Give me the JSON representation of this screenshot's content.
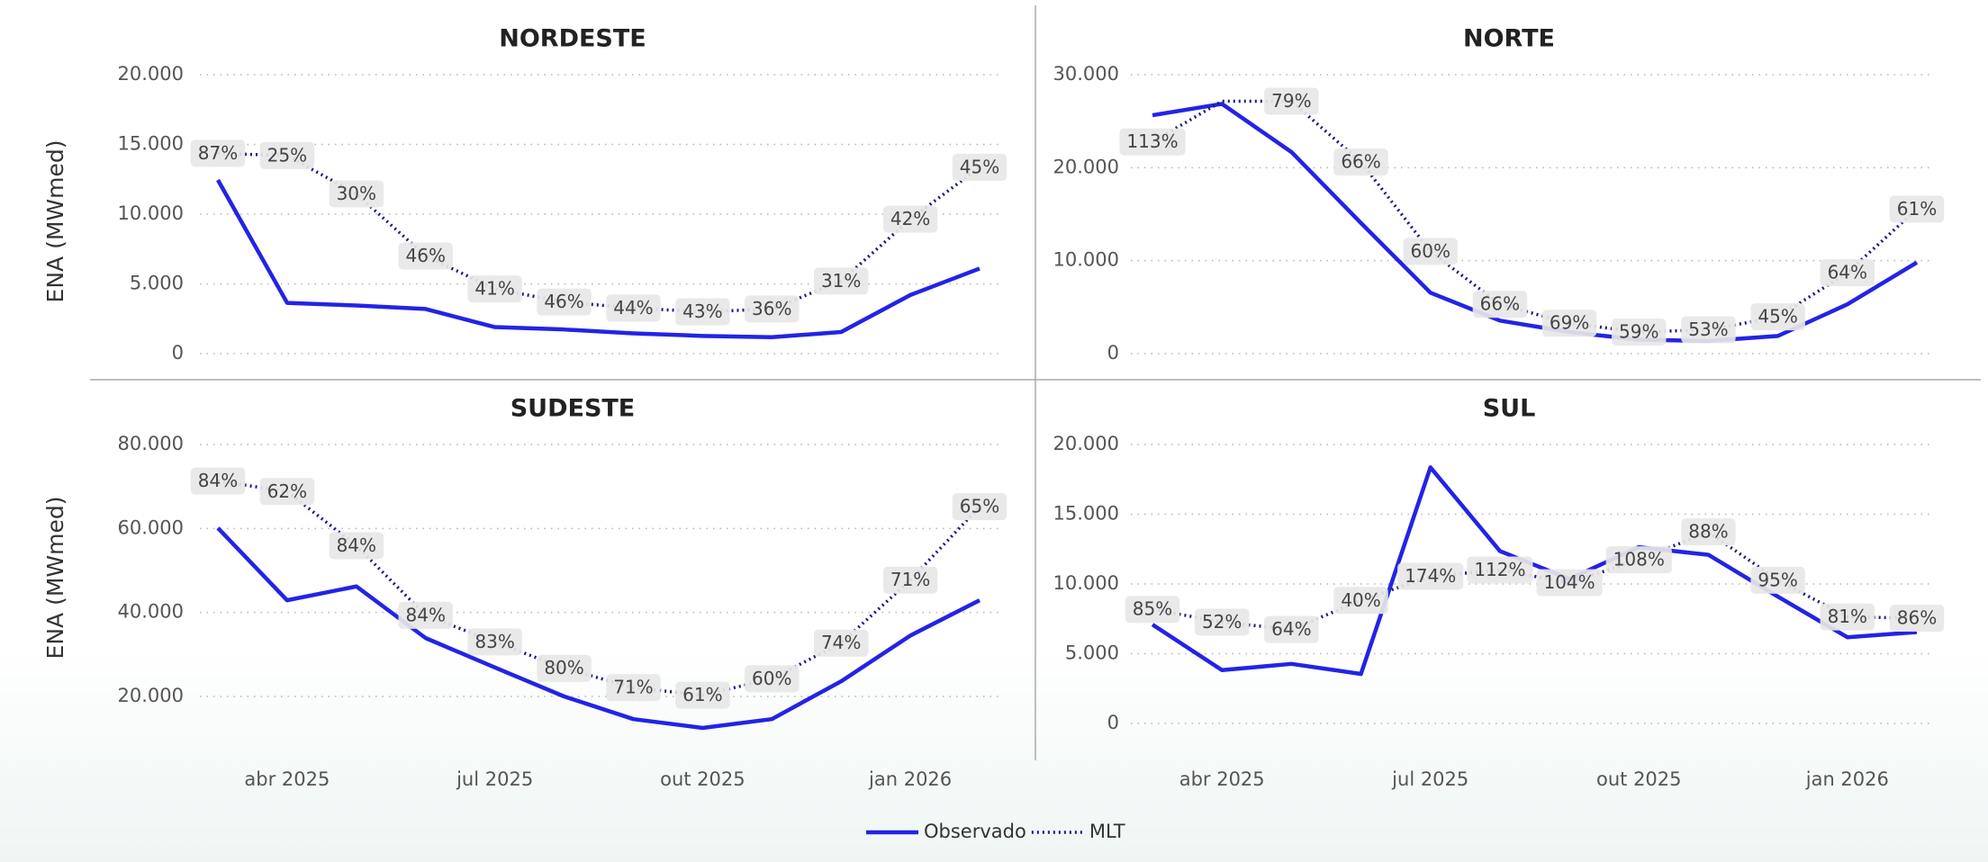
{
  "legend": [
    {
      "name": "Observado",
      "color": "#2323e6",
      "dotted": false
    },
    {
      "name": "MLT",
      "color": "#1a1a80",
      "dotted": true
    }
  ],
  "x_categories": [
    null,
    "abr 2025",
    null,
    null,
    "jul 2025",
    null,
    null,
    "out 2025",
    null,
    null,
    "jan 2026",
    null
  ],
  "y_axis_label": "ENA (MWmed)",
  "chart_data": [
    {
      "type": "line",
      "title": "NORDESTE",
      "ylim": [
        0,
        20000
      ],
      "yticks": [
        0,
        {
          "value": 5000,
          "label": "5.000"
        },
        {
          "value": 10000,
          "label": "10.000"
        },
        {
          "value": 15000,
          "label": "15.000"
        },
        {
          "value": 20000,
          "label": "20.000"
        }
      ],
      "series": [
        {
          "values": [
            12450,
            3640,
            3450,
            3200,
            1900,
            1730,
            1450,
            1270,
            1180,
            1550,
            4200,
            6100
          ]
        },
        {
          "values": [
            14360,
            14200,
            11450,
            7000,
            4640,
            3700,
            3270,
            3000,
            3200,
            5200,
            9640,
            13360
          ]
        }
      ],
      "ratios": {
        "values": [
          87,
          25,
          30,
          46,
          41,
          46,
          44,
          43,
          36,
          31,
          42,
          45
        ],
        "value_labels": [
          "87%",
          "25%",
          "30%",
          "46%",
          "41%",
          "46%",
          "44%",
          "43%",
          "36%",
          "31%",
          "42%",
          "45%"
        ]
      }
    },
    {
      "type": "line",
      "title": "NORTE",
      "ylim": [
        0,
        30000
      ],
      "yticks": [
        0,
        {
          "value": 10000,
          "label": "10.000"
        },
        {
          "value": 20000,
          "label": "20.000"
        },
        {
          "value": 30000,
          "label": "30.000"
        }
      ],
      "series": [
        {
          "values": [
            25640,
            26860,
            21680,
            14050,
            6550,
            3550,
            2320,
            1500,
            1360,
            1900,
            5300,
            9800
          ]
        },
        {
          "values": [
            22770,
            27140,
            27140,
            20600,
            11000,
            5300,
            3270,
            2320,
            2560,
            3950,
            8700,
            15550
          ]
        }
      ],
      "ratios": {
        "values": [
          113,
          null,
          79,
          66,
          60,
          66,
          69,
          59,
          53,
          45,
          64,
          61
        ],
        "value_labels": [
          "113%",
          null,
          "79%",
          "66%",
          "60%",
          "66%",
          "69%",
          "59%",
          "53%",
          "45%",
          "64%",
          "61%"
        ]
      }
    },
    {
      "type": "line",
      "title": "SUDESTE",
      "ylim": [
        20000,
        80000
      ],
      "yticks": [
        {
          "value": 20000,
          "label": "20.000"
        },
        {
          "value": 40000,
          "label": "40.000"
        },
        {
          "value": 60000,
          "label": "60.000"
        },
        {
          "value": 80000,
          "label": "80.000"
        }
      ],
      "series": [
        {
          "values": [
            60100,
            42900,
            46200,
            33900,
            26900,
            20000,
            14600,
            12500,
            14600,
            23600,
            34500,
            42900
          ]
        },
        {
          "values": [
            71300,
            68800,
            55900,
            39300,
            33000,
            26700,
            22100,
            20300,
            24200,
            32700,
            47700,
            65200
          ]
        }
      ],
      "ratios": {
        "values": [
          84,
          62,
          84,
          84,
          83,
          80,
          71,
          61,
          60,
          74,
          71,
          65
        ],
        "value_labels": [
          "84%",
          "62%",
          "84%",
          "84%",
          "83%",
          "80%",
          "71%",
          "61%",
          "60%",
          "74%",
          "71%",
          "65%"
        ]
      }
    },
    {
      "type": "line",
      "title": "SUL",
      "ylim": [
        0,
        20000
      ],
      "yticks": [
        0,
        {
          "value": 5000,
          "label": "5.000"
        },
        {
          "value": 10000,
          "label": "10.000"
        },
        {
          "value": 15000,
          "label": "15.000"
        },
        {
          "value": 20000,
          "label": "20.000"
        }
      ],
      "series": [
        {
          "values": [
            7090,
            3820,
            4270,
            3550,
            18360,
            12360,
            10360,
            12640,
            12090,
            9090,
            6180,
            6550
          ]
        },
        {
          "values": [
            8180,
            7270,
            6730,
            8820,
            10550,
            11000,
            10090,
            11730,
            13730,
            10270,
            7640,
            7550
          ]
        }
      ],
      "ratios": {
        "values": [
          85,
          52,
          64,
          40,
          174,
          112,
          104,
          108,
          88,
          95,
          81,
          86
        ],
        "value_labels": [
          "85%",
          "52%",
          "64%",
          "40%",
          "174%",
          "112%",
          "104%",
          "108%",
          "88%",
          "95%",
          "81%",
          "86%"
        ]
      }
    }
  ]
}
